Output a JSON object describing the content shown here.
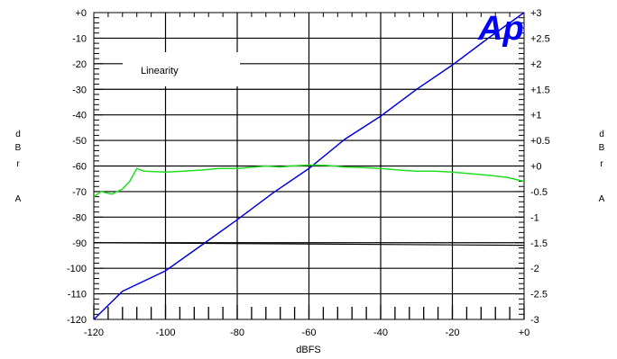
{
  "chart_data": {
    "type": "line",
    "legend_text": "Linearity",
    "logo_text": "Ap",
    "xlabel": "dBFS",
    "ylabel_left": [
      "d",
      "B",
      "r",
      "A"
    ],
    "ylabel_right": [
      "d",
      "B",
      "r",
      "A"
    ],
    "xlim": [
      -120,
      0
    ],
    "ylim_left": [
      -120,
      0
    ],
    "ylim_right": [
      -3,
      3
    ],
    "x_tick_labels": [
      "-120",
      "-100",
      "-80",
      "-60",
      "-40",
      "-20",
      "+0"
    ],
    "x_tick_values": [
      -120,
      -100,
      -80,
      -60,
      -40,
      -20,
      0
    ],
    "y_left_tick_labels": [
      "+0",
      "-10",
      "-20",
      "-30",
      "-40",
      "-50",
      "-60",
      "-70",
      "-80",
      "-90",
      "-100",
      "-110",
      "-120"
    ],
    "y_left_tick_values": [
      0,
      -10,
      -20,
      -30,
      -40,
      -50,
      -60,
      -70,
      -80,
      -90,
      -100,
      -110,
      -120
    ],
    "y_right_tick_labels": [
      "+3",
      "+2.5",
      "+2",
      "+1.5",
      "+1",
      "+0.5",
      "+0",
      "-0.5",
      "-1",
      "-1.5",
      "-2",
      "-2.5",
      "-3"
    ],
    "y_right_tick_values": [
      3,
      2.5,
      2,
      1.5,
      1,
      0.5,
      0,
      -0.5,
      -1,
      -1.5,
      -2,
      -2.5,
      -3
    ],
    "grid": true,
    "colors": {
      "linearity": "#0000dd",
      "deviation": "#22dd22",
      "reference": "#000000",
      "logo": "#0000ff"
    },
    "series": [
      {
        "axis": "left",
        "color": "#0000dd",
        "x": [
          -120,
          -112,
          -100,
          -90,
          -80,
          -70,
          -60,
          -50,
          -40,
          -30,
          -20,
          -10,
          0
        ],
        "y": [
          -120,
          -109,
          -101,
          -91,
          -81,
          -70.5,
          -61,
          -49.5,
          -40.5,
          -30,
          -20.5,
          -10,
          0
        ]
      },
      {
        "axis": "right",
        "color": "#22dd22",
        "x": [
          -120,
          -118,
          -115,
          -112,
          -110,
          -108,
          -106,
          -100,
          -95,
          -90,
          -85,
          -80,
          -75,
          -72,
          -68,
          -65,
          -62,
          -60,
          -55,
          -50,
          -45,
          -40,
          -35,
          -30,
          -25,
          -20,
          -15,
          -10,
          -5,
          0
        ],
        "y": [
          -0.6,
          -0.5,
          -0.55,
          -0.45,
          -0.3,
          -0.05,
          -0.1,
          -0.12,
          -0.1,
          -0.08,
          -0.05,
          -0.05,
          -0.02,
          0,
          -0.02,
          0,
          0.01,
          0.02,
          0.01,
          -0.02,
          -0.03,
          -0.05,
          -0.08,
          -0.1,
          -0.1,
          -0.12,
          -0.15,
          -0.18,
          -0.22,
          -0.3
        ]
      },
      {
        "axis": "right",
        "color": "#000000",
        "x": [
          -120,
          0
        ],
        "y": [
          -1.5,
          -1.55
        ]
      }
    ]
  }
}
